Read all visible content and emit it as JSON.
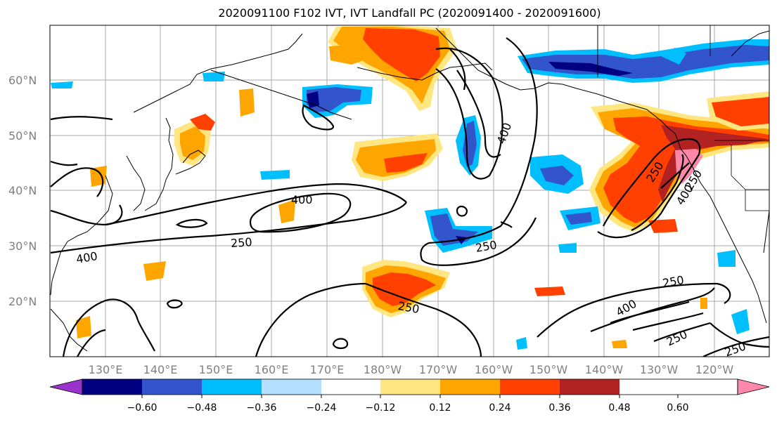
{
  "title": "2020091100 F102 IVT, IVT Landfall PC (2020091400 - 2020091600)",
  "lat_labels": [
    "60°N",
    "50°N",
    "40°N",
    "30°N",
    "20°N"
  ],
  "lon_labels": [
    "130°E",
    "140°E",
    "150°E",
    "160°E",
    "170°E",
    "180°W",
    "170°W",
    "160°W",
    "150°W",
    "140°W",
    "130°W",
    "120°W"
  ],
  "contour_labels": [
    "400",
    "400",
    "250",
    "400",
    "250",
    "250",
    "250",
    "400",
    "250",
    "250",
    "250",
    "400",
    "250"
  ],
  "colorbar": {
    "colors": [
      "#9933cc",
      "#000080",
      "#3355cc",
      "#00bfff",
      "#b3e0ff",
      "#ffffff",
      "#ffe680",
      "#ffa500",
      "#ff4000",
      "#b22222",
      "#ff88aa"
    ],
    "tick_labels": [
      "−0.60",
      "−0.48",
      "−0.36",
      "−0.24",
      "−0.12",
      "0.12",
      "0.24",
      "0.36",
      "0.48",
      "0.60"
    ]
  }
}
